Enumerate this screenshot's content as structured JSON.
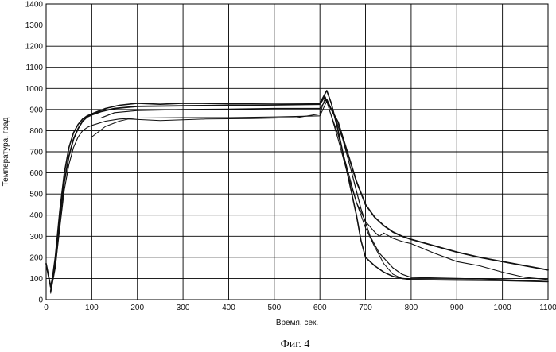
{
  "chart_data": {
    "type": "line",
    "xlabel": "Время, сек.",
    "ylabel": "Температура, град",
    "caption": "Фиг. 4",
    "xlim": [
      0,
      1100
    ],
    "ylim": [
      0,
      1400
    ],
    "xticks": [
      0,
      100,
      200,
      300,
      400,
      500,
      600,
      700,
      800,
      900,
      1000,
      1100
    ],
    "yticks": [
      0,
      100,
      200,
      300,
      400,
      500,
      600,
      700,
      800,
      900,
      1000,
      1100,
      1200,
      1300,
      1400
    ],
    "grid": true,
    "legend": "none",
    "series": [
      {
        "color": "#111111",
        "points": [
          [
            0,
            170
          ],
          [
            10,
            60
          ],
          [
            20,
            160
          ],
          [
            30,
            380
          ],
          [
            40,
            560
          ],
          [
            50,
            680
          ],
          [
            60,
            760
          ],
          [
            70,
            810
          ],
          [
            80,
            845
          ],
          [
            90,
            865
          ],
          [
            100,
            875
          ],
          [
            120,
            890
          ],
          [
            150,
            905
          ],
          [
            200,
            915
          ],
          [
            300,
            918
          ],
          [
            400,
            920
          ],
          [
            500,
            922
          ],
          [
            600,
            925
          ],
          [
            610,
            960
          ],
          [
            620,
            920
          ],
          [
            640,
            840
          ],
          [
            660,
            700
          ],
          [
            680,
            560
          ],
          [
            700,
            450
          ],
          [
            720,
            390
          ],
          [
            740,
            350
          ],
          [
            760,
            320
          ],
          [
            780,
            300
          ],
          [
            800,
            285
          ],
          [
            850,
            255
          ],
          [
            900,
            225
          ],
          [
            950,
            200
          ],
          [
            1000,
            180
          ],
          [
            1050,
            160
          ],
          [
            1100,
            140
          ]
        ]
      },
      {
        "color": "#111111",
        "points": [
          [
            10,
            40
          ],
          [
            20,
            200
          ],
          [
            30,
            420
          ],
          [
            40,
            600
          ],
          [
            50,
            720
          ],
          [
            60,
            790
          ],
          [
            70,
            830
          ],
          [
            80,
            855
          ],
          [
            90,
            870
          ],
          [
            100,
            880
          ],
          [
            130,
            905
          ],
          [
            160,
            920
          ],
          [
            200,
            930
          ],
          [
            250,
            925
          ],
          [
            300,
            930
          ],
          [
            400,
            928
          ],
          [
            500,
            930
          ],
          [
            600,
            930
          ],
          [
            615,
            990
          ],
          [
            625,
            930
          ],
          [
            640,
            800
          ],
          [
            660,
            600
          ],
          [
            680,
            400
          ],
          [
            690,
            280
          ],
          [
            700,
            200
          ],
          [
            720,
            160
          ],
          [
            740,
            130
          ],
          [
            760,
            110
          ],
          [
            780,
            100
          ],
          [
            800,
            95
          ],
          [
            900,
            92
          ],
          [
            1000,
            90
          ],
          [
            1100,
            85
          ]
        ]
      },
      {
        "color": "#111111",
        "points": [
          [
            10,
            30
          ],
          [
            20,
            150
          ],
          [
            30,
            340
          ],
          [
            40,
            520
          ],
          [
            50,
            640
          ],
          [
            60,
            720
          ],
          [
            70,
            770
          ],
          [
            80,
            800
          ],
          [
            90,
            815
          ],
          [
            100,
            825
          ],
          [
            130,
            845
          ],
          [
            160,
            855
          ],
          [
            200,
            860
          ],
          [
            300,
            862
          ],
          [
            400,
            862
          ],
          [
            500,
            865
          ],
          [
            600,
            870
          ],
          [
            615,
            940
          ],
          [
            625,
            870
          ],
          [
            640,
            760
          ],
          [
            660,
            600
          ],
          [
            680,
            460
          ],
          [
            700,
            370
          ],
          [
            720,
            320
          ],
          [
            730,
            300
          ],
          [
            740,
            315
          ],
          [
            760,
            290
          ],
          [
            780,
            275
          ],
          [
            800,
            265
          ],
          [
            850,
            220
          ],
          [
            900,
            180
          ],
          [
            950,
            160
          ],
          [
            1000,
            130
          ],
          [
            1050,
            105
          ],
          [
            1100,
            95
          ]
        ]
      },
      {
        "color": "#111111",
        "points": [
          [
            100,
            770
          ],
          [
            130,
            820
          ],
          [
            160,
            845
          ],
          [
            180,
            855
          ],
          [
            250,
            848
          ],
          [
            350,
            855
          ],
          [
            450,
            857
          ],
          [
            550,
            862
          ],
          [
            600,
            880
          ],
          [
            612,
            960
          ],
          [
            622,
            890
          ],
          [
            640,
            780
          ],
          [
            660,
            620
          ],
          [
            680,
            460
          ],
          [
            700,
            340
          ],
          [
            720,
            250
          ],
          [
            740,
            170
          ],
          [
            760,
            120
          ],
          [
            780,
            100
          ],
          [
            800,
            95
          ],
          [
            900,
            95
          ],
          [
            1000,
            90
          ]
        ]
      },
      {
        "color": "#111111",
        "points": [
          [
            120,
            860
          ],
          [
            150,
            885
          ],
          [
            200,
            895
          ],
          [
            300,
            900
          ],
          [
            400,
            902
          ],
          [
            500,
            905
          ],
          [
            600,
            905
          ],
          [
            615,
            950
          ],
          [
            630,
            880
          ],
          [
            650,
            760
          ],
          [
            670,
            600
          ],
          [
            690,
            430
          ],
          [
            710,
            300
          ],
          [
            730,
            220
          ],
          [
            760,
            150
          ],
          [
            780,
            120
          ],
          [
            800,
            105
          ],
          [
            900,
            100
          ],
          [
            1000,
            95
          ],
          [
            1100,
            85
          ]
        ]
      }
    ]
  }
}
